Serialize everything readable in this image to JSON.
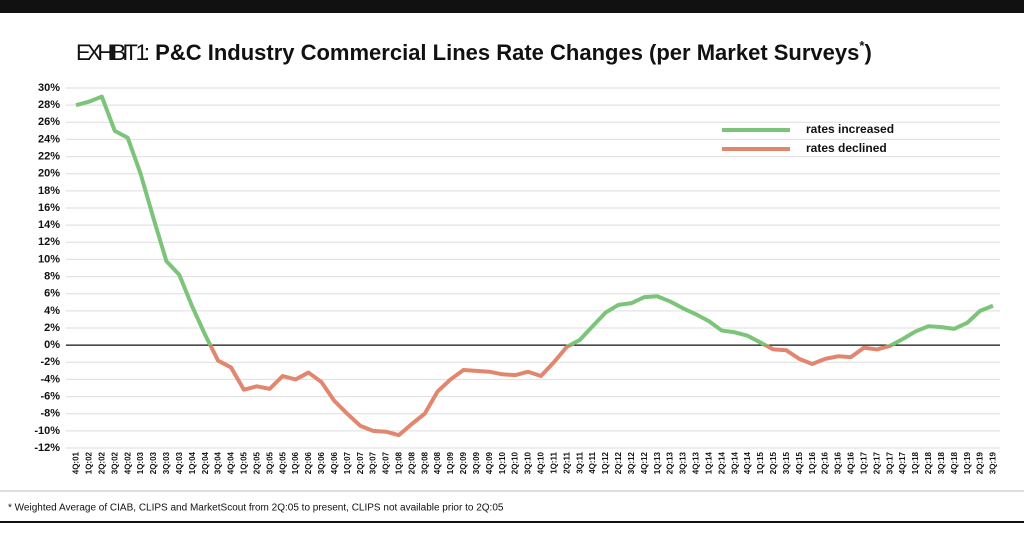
{
  "chart_data": {
    "type": "line",
    "title_prefix": "EXHIBIT 1:",
    "title": "P&C Industry Commercial Lines Rate Changes (per Market Surveys",
    "title_mark": "*",
    "title_end": ")",
    "footnote": "* Weighted Average of  CIAB, CLIPS and MarketScout  from 2Q:05 to present, CLIPS not available prior to 2Q:05",
    "categories": [
      "4Q:01",
      "1Q:02",
      "2Q:02",
      "3Q:02",
      "4Q:02",
      "1Q:03",
      "2Q:03",
      "3Q:03",
      "4Q:03",
      "1Q:04",
      "2Q:04",
      "3Q:04",
      "4Q:04",
      "1Q:05",
      "2Q:05",
      "3Q:05",
      "4Q:05",
      "1Q:06",
      "2Q:06",
      "3Q:06",
      "4Q:06",
      "1Q:07",
      "2Q:07",
      "3Q:07",
      "4Q:07",
      "1Q:08",
      "2Q:08",
      "3Q:08",
      "4Q:08",
      "1Q:09",
      "2Q:09",
      "3Q:09",
      "4Q:09",
      "1Q:10",
      "2Q:10",
      "3Q:10",
      "4Q:10",
      "1Q:11",
      "2Q:11",
      "3Q:11",
      "4Q:11",
      "1Q:12",
      "2Q:12",
      "3Q:12",
      "4Q:12",
      "1Q:13",
      "2Q:13",
      "3Q:13",
      "4Q:13",
      "1Q:14",
      "2Q:14",
      "3Q:14",
      "4Q:14",
      "1Q:15",
      "2Q:15",
      "3Q:15",
      "4Q:15",
      "1Q:16",
      "2Q:16",
      "3Q:16",
      "4Q:16",
      "1Q:17",
      "2Q:17",
      "3Q:17",
      "4Q:17",
      "1Q:18",
      "2Q:18",
      "3Q:18",
      "4Q:18",
      "1Q:19",
      "2Q:19",
      "3Q:19"
    ],
    "values": [
      28,
      28.4,
      29,
      25,
      24.2,
      20,
      14.8,
      9.8,
      8.2,
      4.5,
      1.2,
      -1.8,
      -2.6,
      -5.2,
      -4.8,
      -5.1,
      -3.6,
      -4,
      -3.2,
      -4.3,
      -6.5,
      -8,
      -9.4,
      -10,
      -10.1,
      -10.5,
      -9.2,
      -8,
      -5.4,
      -4,
      -2.9,
      -3,
      -3.1,
      -3.4,
      -3.5,
      -3.1,
      -3.6,
      -2,
      -0.2,
      0.6,
      2.2,
      3.8,
      4.7,
      4.9,
      5.6,
      5.7,
      5.1,
      4.3,
      3.6,
      2.8,
      1.7,
      1.5,
      1.1,
      0.3,
      -0.5,
      -0.6,
      -1.6,
      -2.2,
      -1.6,
      -1.3,
      -1.4,
      -0.3,
      -0.5,
      -0.1,
      0.7,
      1.6,
      2.2,
      2.1,
      1.9,
      2.6,
      4,
      4.6
    ],
    "series": [
      {
        "name": "rates increased",
        "color": "#7dc47b"
      },
      {
        "name": "rates declined",
        "color": "#e2876f"
      }
    ],
    "ylim": [
      -12,
      30
    ],
    "yticks": [
      {
        "value": -12,
        "label": "-12%"
      },
      {
        "value": -10,
        "label": "-10%"
      },
      {
        "value": -8,
        "label": "-8%"
      },
      {
        "value": -6,
        "label": "-6%"
      },
      {
        "value": -4,
        "label": "-4%"
      },
      {
        "value": -2,
        "label": "-2%"
      },
      {
        "value": 0,
        "label": "0%"
      },
      {
        "value": 2,
        "label": "2%"
      },
      {
        "value": 4,
        "label": "4%"
      },
      {
        "value": 6,
        "label": "6%"
      },
      {
        "value": 8,
        "label": "8%"
      },
      {
        "value": 10,
        "label": "10%"
      },
      {
        "value": 12,
        "label": "12%"
      },
      {
        "value": 14,
        "label": "14%"
      },
      {
        "value": 16,
        "label": "16%"
      },
      {
        "value": 18,
        "label": "18%"
      },
      {
        "value": 20,
        "label": "20%"
      },
      {
        "value": 22,
        "label": "22%"
      },
      {
        "value": 24,
        "label": "24%"
      },
      {
        "value": 26,
        "label": "26%"
      },
      {
        "value": 28,
        "label": "28%"
      },
      {
        "value": 30,
        "label": "30%"
      }
    ],
    "grid": true
  }
}
